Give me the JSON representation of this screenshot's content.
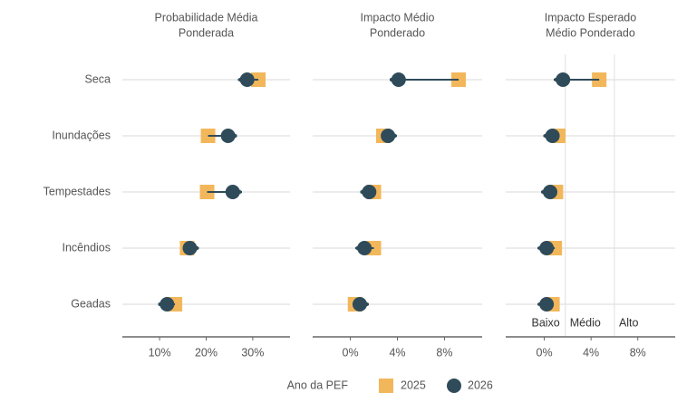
{
  "chart_data": [
    {
      "type": "dot-arrow",
      "title": [
        "Probabilidade Média",
        "Ponderada"
      ],
      "categories": [
        "Seca",
        "Inundações",
        "Tempestades",
        "Incêndios",
        "Geadas"
      ],
      "series": [
        {
          "name": "2025",
          "color": "#f2b75b",
          "values": [
            31.2,
            20.4,
            20.2,
            15.9,
            13.3
          ]
        },
        {
          "name": "2026",
          "color": "#2f4b5a",
          "values": [
            28.8,
            24.7,
            25.7,
            16.5,
            11.6
          ]
        }
      ],
      "xlim": [
        2,
        38
      ],
      "xticks": [
        {
          "value": 10,
          "label": "10%"
        },
        {
          "value": 20,
          "label": "20%"
        },
        {
          "value": 30,
          "label": "30%"
        }
      ]
    },
    {
      "type": "dot-arrow",
      "title": [
        "Impacto Médio",
        "Ponderado"
      ],
      "series": [
        {
          "values": [
            9.2,
            2.8,
            2.0,
            2.0,
            0.4
          ]
        },
        {
          "values": [
            4.1,
            3.2,
            1.6,
            1.2,
            0.8
          ]
        }
      ],
      "xlim": [
        -3.2,
        11.2
      ],
      "xticks": [
        {
          "value": 0,
          "label": "0%"
        },
        {
          "value": 4,
          "label": "4%"
        },
        {
          "value": 8,
          "label": "8%"
        }
      ]
    },
    {
      "type": "dot-arrow",
      "title": [
        "Impacto Esperado",
        "Médio Ponderado"
      ],
      "series": [
        {
          "values": [
            4.7,
            1.2,
            1.0,
            0.9,
            0.7
          ]
        },
        {
          "values": [
            1.6,
            0.7,
            0.5,
            0.2,
            0.2
          ]
        }
      ],
      "xlim": [
        -3.3,
        11.2
      ],
      "xticks": [
        {
          "value": 0,
          "label": "0%"
        },
        {
          "value": 4,
          "label": "4%"
        },
        {
          "value": 8,
          "label": "8%"
        }
      ],
      "zone_breaks": [
        1.8,
        6
      ],
      "zone_labels": [
        "Baixo",
        "Médio",
        "Alto"
      ]
    }
  ],
  "legend": {
    "title": "Ano da PEF",
    "position": "bottom"
  }
}
